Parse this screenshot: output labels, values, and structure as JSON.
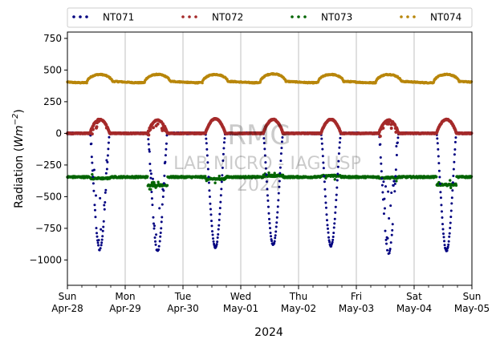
{
  "chart_data": {
    "type": "scatter",
    "ylabel": "Radiation (Wm⁻²)",
    "ylabel_text": "Radiation (",
    "ylabel_var": "Wm",
    "ylabel_exp": "−2",
    "ylabel_close": ")",
    "xlabel": "2024",
    "ylim": [
      -1200,
      800
    ],
    "yticks": [
      -1000,
      -750,
      -500,
      -250,
      0,
      250,
      500,
      750
    ],
    "ytick_labels": [
      "−1000",
      "−750",
      "−500",
      "−250",
      "0",
      "250",
      "500",
      "750"
    ],
    "xlim": [
      "2024-04-28",
      "2024-05-05"
    ],
    "xticks": [
      {
        "date": "2024-04-28",
        "line1": "Sun",
        "line2": "Apr-28"
      },
      {
        "date": "2024-04-29",
        "line1": "Mon",
        "line2": "Apr-29"
      },
      {
        "date": "2024-04-30",
        "line1": "Tue",
        "line2": "Apr-30"
      },
      {
        "date": "2024-05-01",
        "line1": "Wed",
        "line2": "May-01"
      },
      {
        "date": "2024-05-02",
        "line1": "Thu",
        "line2": "May-02"
      },
      {
        "date": "2024-05-03",
        "line1": "Fri",
        "line2": "May-03"
      },
      {
        "date": "2024-05-04",
        "line1": "Sat",
        "line2": "May-04"
      },
      {
        "date": "2024-05-05",
        "line1": "Sun",
        "line2": "May-05"
      }
    ],
    "grid": "vertical at major x ticks",
    "legend_position": "top, above plot",
    "watermark": {
      "line1": "RMG",
      "line2": "LAB MICRO - IAG USP",
      "line3": "2024"
    },
    "series": [
      {
        "name": "NT071",
        "color": "#000080",
        "night_value": 0,
        "daily_min": [
          -920,
          -930,
          -905,
          -880,
          -890,
          -950,
          -930
        ],
        "noisy_days": [
          0,
          1,
          5
        ]
      },
      {
        "name": "NT072",
        "color": "#a52a2a",
        "night_value": 0,
        "daily_max": [
          110,
          105,
          115,
          110,
          110,
          105,
          110
        ]
      },
      {
        "name": "NT073",
        "color": "#006400",
        "baseline": -345,
        "day_values": [
          -355,
          -410,
          -360,
          -335,
          -335,
          -350,
          -405
        ]
      },
      {
        "name": "NT074",
        "color": "#b8860b",
        "night_value": 405,
        "daily_max": [
          465,
          465,
          465,
          470,
          465,
          465,
          465
        ]
      }
    ]
  }
}
